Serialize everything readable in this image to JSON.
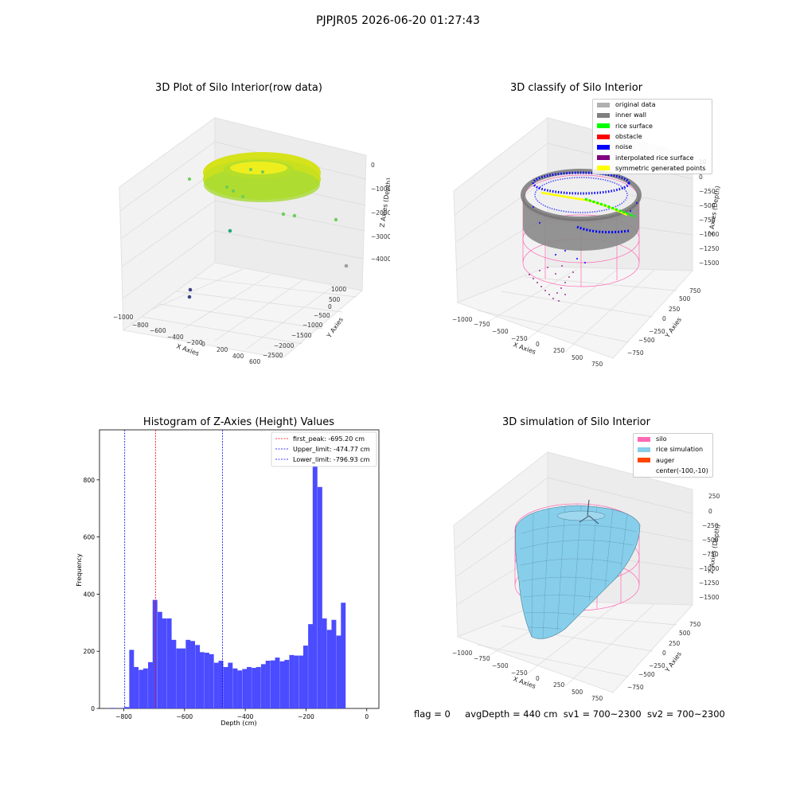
{
  "suptitle": "PJPJR05 2026-06-20 01:27:43",
  "footer": {
    "flag": "flag = 0",
    "avg_depth": "avgDepth = 440 cm",
    "sv1": "sv1 = 700~2300",
    "sv2": "sv2 = 700~2300"
  },
  "colors": {
    "raw_gradient": [
      "#dde318",
      "#a8db34",
      "#6ccd5a"
    ],
    "inner_wall": "#808080",
    "rice_surface": "#00ff00",
    "noise": "#0000ff",
    "interpolated": "#800080",
    "symmetric": "#ffff00",
    "silo": "#ff69b4",
    "rice_sim": "#87ceeb",
    "auger": "#ff4500",
    "hist_bar": "#4b4bff",
    "first_peak_line": "#ff0000",
    "limit_line": "#0000ff"
  },
  "chart_data": [
    {
      "type": "scatter",
      "title": "3D Plot of Silo Interior(row data)",
      "xlabel": "X Axies",
      "ylabel": "Y Axies",
      "zlabel": "Z Axies (Depth)",
      "x_ticks": [
        "−1000",
        "−800",
        "−600",
        "−400",
        "−200",
        "0",
        "200",
        "400",
        "600"
      ],
      "y_ticks": [
        "1000",
        "500",
        "0",
        "−500",
        "−1000",
        "−1500",
        "−2000",
        "−2500"
      ],
      "z_ticks": [
        "0",
        "−1000",
        "−2000",
        "−3000",
        "−4000"
      ]
    },
    {
      "type": "scatter",
      "title": "3D classify of Silo Interior",
      "xlabel": "X Axies",
      "ylabel": "Y Axies",
      "zlabel": "Z Axies (Depth)",
      "x_ticks": [
        "−1000",
        "−750",
        "−500",
        "−250",
        "0",
        "250",
        "500",
        "750"
      ],
      "y_ticks": [
        "750",
        "500",
        "250",
        "0",
        "−250",
        "−500",
        "−750"
      ],
      "z_ticks": [
        "0",
        "−250",
        "−500",
        "−750",
        "−1000",
        "−1250",
        "−1500"
      ],
      "z_top_partial": "10",
      "legend": [
        {
          "label": "original data",
          "color": "#b0b0b0"
        },
        {
          "label": "inner wall",
          "color": "#808080"
        },
        {
          "label": "rice surface",
          "color": "#00ff00"
        },
        {
          "label": "obstacle",
          "color": "#ff0000"
        },
        {
          "label": "noise",
          "color": "#0000ff"
        },
        {
          "label": "interpolated rice surface",
          "color": "#800080"
        },
        {
          "label": "symmetric generated points",
          "color": "#ffff00"
        }
      ]
    },
    {
      "type": "bar",
      "title": "Histogram of Z-Axies (Height) Values",
      "xlabel": "Depth (cm)",
      "ylabel": "Frequency",
      "xlim": [
        -880,
        40
      ],
      "ylim": [
        0,
        975
      ],
      "bin_width": 15.5,
      "x_ticks": [
        -800,
        -600,
        -400,
        -200,
        0
      ],
      "x_tick_labels": [
        "−800",
        "−600",
        "−400",
        "−200",
        "0"
      ],
      "y_ticks": [
        0,
        200,
        400,
        600,
        800
      ],
      "y_tick_labels": [
        "0",
        "200",
        "400",
        "600",
        "800"
      ],
      "bins": [
        {
          "start": -844,
          "value": 2
        },
        {
          "start": -829,
          "value": 0
        },
        {
          "start": -813,
          "value": 2
        },
        {
          "start": -798,
          "value": 5
        },
        {
          "start": -782,
          "value": 205
        },
        {
          "start": -767,
          "value": 145
        },
        {
          "start": -751,
          "value": 135
        },
        {
          "start": -736,
          "value": 140
        },
        {
          "start": -720,
          "value": 162
        },
        {
          "start": -705,
          "value": 380
        },
        {
          "start": -689,
          "value": 338
        },
        {
          "start": -674,
          "value": 315
        },
        {
          "start": -658,
          "value": 315
        },
        {
          "start": -643,
          "value": 240
        },
        {
          "start": -627,
          "value": 210
        },
        {
          "start": -612,
          "value": 210
        },
        {
          "start": -596,
          "value": 240
        },
        {
          "start": -581,
          "value": 236
        },
        {
          "start": -565,
          "value": 222
        },
        {
          "start": -550,
          "value": 197
        },
        {
          "start": -534,
          "value": 195
        },
        {
          "start": -519,
          "value": 190
        },
        {
          "start": -503,
          "value": 160
        },
        {
          "start": -488,
          "value": 167
        },
        {
          "start": -472,
          "value": 145
        },
        {
          "start": -457,
          "value": 160
        },
        {
          "start": -441,
          "value": 140
        },
        {
          "start": -426,
          "value": 133
        },
        {
          "start": -410,
          "value": 138
        },
        {
          "start": -395,
          "value": 145
        },
        {
          "start": -379,
          "value": 142
        },
        {
          "start": -364,
          "value": 145
        },
        {
          "start": -348,
          "value": 155
        },
        {
          "start": -333,
          "value": 167
        },
        {
          "start": -317,
          "value": 168
        },
        {
          "start": -302,
          "value": 178
        },
        {
          "start": -286,
          "value": 165
        },
        {
          "start": -271,
          "value": 170
        },
        {
          "start": -255,
          "value": 187
        },
        {
          "start": -240,
          "value": 185
        },
        {
          "start": -224,
          "value": 185
        },
        {
          "start": -209,
          "value": 220
        },
        {
          "start": -193,
          "value": 295
        },
        {
          "start": -178,
          "value": 955
        },
        {
          "start": -162,
          "value": 775
        },
        {
          "start": -147,
          "value": 315
        },
        {
          "start": -131,
          "value": 275
        },
        {
          "start": -116,
          "value": 310
        },
        {
          "start": -100,
          "value": 255
        },
        {
          "start": -85,
          "value": 370
        }
      ],
      "vlines": [
        {
          "x": -695.2,
          "label": "first_peak: -695.20 cm",
          "color": "#ff0000"
        },
        {
          "x": -474.77,
          "label": "Upper_limit: -474.77 cm",
          "color": "#0000ff"
        },
        {
          "x": -796.93,
          "label": "Lower_limit: -796.93 cm",
          "color": "#0000ff"
        }
      ]
    },
    {
      "type": "area",
      "title": "3D simulation of Silo Interior",
      "xlabel": "X Axies",
      "ylabel": "Y Axies",
      "zlabel": "Z Axies (Depth)",
      "x_ticks": [
        "−1000",
        "−750",
        "−500",
        "−250",
        "0",
        "250",
        "500",
        "750"
      ],
      "y_ticks": [
        "750",
        "500",
        "250",
        "0",
        "−250",
        "−500",
        "−750"
      ],
      "z_ticks": [
        "250",
        "0",
        "−250",
        "−500",
        "−750",
        "−1000",
        "−1250",
        "−1500"
      ],
      "legend": [
        {
          "label": "silo",
          "color": "#ff69b4"
        },
        {
          "label": "rice simulation",
          "color": "#87ceeb"
        },
        {
          "label": "auger",
          "color": "#ff4500"
        },
        {
          "label": "center(-100,-10)",
          "color": ""
        }
      ]
    }
  ]
}
